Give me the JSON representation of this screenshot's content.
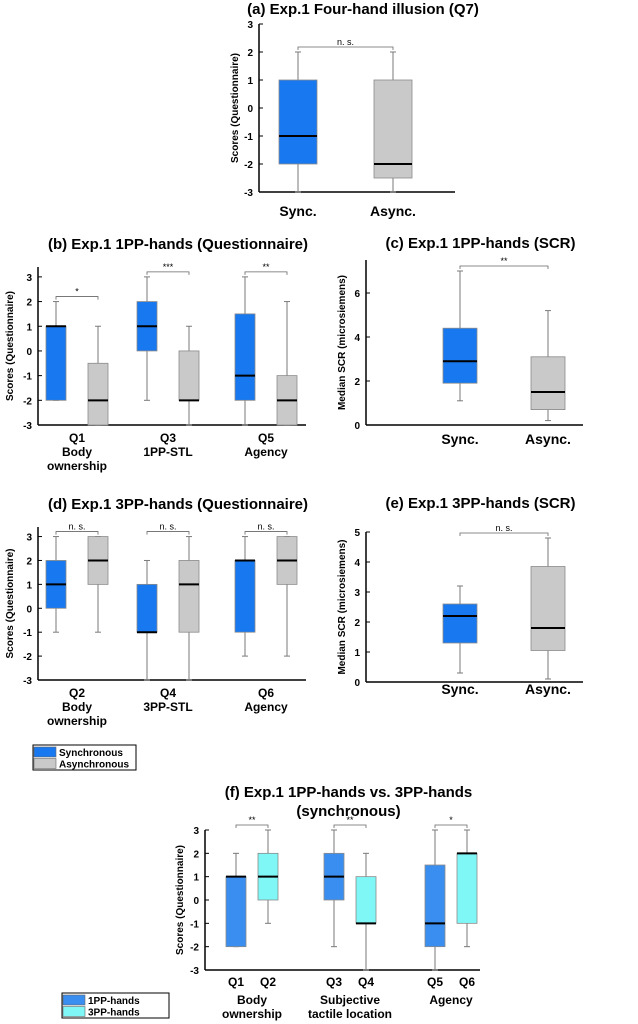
{
  "colors": {
    "sync": "#1878f0",
    "async": "#c9c9c9",
    "hands1pp": "#3a8ef0",
    "hands3pp": "#7ff7f7",
    "whisker": "#7a7a7a",
    "median": "#000000"
  },
  "chart_data": [
    {
      "type": "box",
      "panel": "(a)",
      "title": "Exp.1 Four-hand illusion (Q7)",
      "ylabel": "Scores (Questionnaire)",
      "ylim": [
        -3,
        3
      ],
      "yticks": [
        3,
        2,
        1,
        0,
        -1,
        -2,
        -3
      ],
      "categories": [
        "Sync.",
        "Async."
      ],
      "boxes": [
        {
          "group": 0,
          "series": "sync",
          "min": -3,
          "q1": -2,
          "median": -1,
          "q3": 1,
          "max": 2
        },
        {
          "group": 1,
          "series": "async",
          "min": -3,
          "q1": -2.5,
          "median": -2,
          "q3": 1,
          "max": 2
        }
      ],
      "significance": [
        {
          "from": 0,
          "to": 1,
          "label": "n. s."
        }
      ]
    },
    {
      "type": "box",
      "panel": "(b)",
      "title": "Exp.1 1PP-hands (Questionnaire)",
      "ylabel": "Scores (Questionnaire)",
      "ylim": [
        -3,
        3.4
      ],
      "yticks": [
        3,
        2,
        1,
        0,
        -1,
        -2,
        -3
      ],
      "categories": [
        [
          "Q1",
          "Body",
          "ownership"
        ],
        [
          "Q3",
          "1PP-STL"
        ],
        [
          "Q5",
          "Agency"
        ]
      ],
      "boxes": [
        {
          "group": 0,
          "series": "sync",
          "min": -2,
          "q1": -2,
          "median": 1,
          "q3": 1,
          "max": 2
        },
        {
          "group": 0,
          "series": "async",
          "min": -3,
          "q1": -3,
          "median": -2,
          "q3": -0.5,
          "max": 1
        },
        {
          "group": 1,
          "series": "sync",
          "min": -2,
          "q1": 0,
          "median": 1,
          "q3": 2,
          "max": 3
        },
        {
          "group": 1,
          "series": "async",
          "min": -3,
          "q1": -2,
          "median": -2,
          "q3": 0,
          "max": 1
        },
        {
          "group": 2,
          "series": "sync",
          "min": -3,
          "q1": -2,
          "median": -1,
          "q3": 1.5,
          "max": 3
        },
        {
          "group": 2,
          "series": "async",
          "min": -3,
          "q1": -3,
          "median": -2,
          "q3": -1,
          "max": 2
        }
      ],
      "significance": [
        {
          "group": 0,
          "label": "*"
        },
        {
          "group": 1,
          "label": "***"
        },
        {
          "group": 2,
          "label": "**"
        }
      ]
    },
    {
      "type": "box",
      "panel": "(c)",
      "title": "Exp.1 1PP-hands (SCR)",
      "ylabel": "Median SCR (microsiemens)",
      "ylim": [
        0,
        7.5
      ],
      "yticks": [
        6,
        4,
        2,
        0
      ],
      "categories": [
        "Sync.",
        "Async."
      ],
      "boxes": [
        {
          "group": 0,
          "series": "sync",
          "min": 1.1,
          "q1": 1.9,
          "median": 2.9,
          "q3": 4.4,
          "max": 7
        },
        {
          "group": 1,
          "series": "async",
          "min": 0.2,
          "q1": 0.7,
          "median": 1.5,
          "q3": 3.1,
          "max": 5.2
        }
      ],
      "significance": [
        {
          "from": 0,
          "to": 1,
          "label": "**"
        }
      ]
    },
    {
      "type": "box",
      "panel": "(d)",
      "title": "Exp.1 3PP-hands (Questionnaire)",
      "ylabel": "Scores (Questionnaire)",
      "ylim": [
        -3,
        3.4
      ],
      "yticks": [
        3,
        2,
        1,
        0,
        -1,
        -2,
        -3
      ],
      "categories": [
        [
          "Q2",
          "Body",
          "ownership"
        ],
        [
          "Q4",
          "3PP-STL"
        ],
        [
          "Q6",
          "Agency"
        ]
      ],
      "boxes": [
        {
          "group": 0,
          "series": "sync",
          "min": -1,
          "q1": 0,
          "median": 1,
          "q3": 2,
          "max": 3
        },
        {
          "group": 0,
          "series": "async",
          "min": -1,
          "q1": 1,
          "median": 2,
          "q3": 3,
          "max": 3
        },
        {
          "group": 1,
          "series": "sync",
          "min": -3,
          "q1": -1,
          "median": -1,
          "q3": 1,
          "max": 2
        },
        {
          "group": 1,
          "series": "async",
          "min": -3,
          "q1": -1,
          "median": 1,
          "q3": 2,
          "max": 3
        },
        {
          "group": 2,
          "series": "sync",
          "min": -2,
          "q1": -1,
          "median": 2,
          "q3": 2,
          "max": 3
        },
        {
          "group": 2,
          "series": "async",
          "min": -2,
          "q1": 1,
          "median": 2,
          "q3": 3,
          "max": 3
        }
      ],
      "significance": [
        {
          "group": 0,
          "label": "n. s."
        },
        {
          "group": 1,
          "label": "n. s."
        },
        {
          "group": 2,
          "label": "n. s."
        }
      ]
    },
    {
      "type": "box",
      "panel": "(e)",
      "title": "Exp.1 3PP-hands (SCR)",
      "ylabel": "Median SCR (microsiemens)",
      "ylim": [
        0,
        5
      ],
      "yticks": [
        5,
        4,
        3,
        2,
        1,
        0
      ],
      "categories": [
        "Sync.",
        "Async."
      ],
      "boxes": [
        {
          "group": 0,
          "series": "sync",
          "min": 0.3,
          "q1": 1.3,
          "median": 2.2,
          "q3": 2.6,
          "max": 3.2
        },
        {
          "group": 1,
          "series": "async",
          "min": 0.1,
          "q1": 1.05,
          "median": 1.8,
          "q3": 3.85,
          "max": 4.8
        }
      ],
      "significance": [
        {
          "from": 0,
          "to": 1,
          "label": "n. s."
        }
      ]
    },
    {
      "type": "box",
      "panel": "(f)",
      "title": [
        "Exp.1 1PP-hands vs. 3PP-hands",
        "(synchronous)"
      ],
      "ylabel": "Scores (Questionnaire)",
      "ylim": [
        -3,
        3
      ],
      "yticks": [
        3,
        2,
        1,
        0,
        -1,
        -2,
        -3
      ],
      "boxLabels": [
        "Q1",
        "Q2",
        "Q3",
        "Q4",
        "Q5",
        "Q6"
      ],
      "categories": [
        [
          "Body",
          "ownership"
        ],
        [
          "Subjective",
          "tactile location"
        ],
        [
          "Agency"
        ]
      ],
      "boxes": [
        {
          "group": 0,
          "series": "hands1pp",
          "min": -2,
          "q1": -2,
          "median": 1,
          "q3": 1,
          "max": 2
        },
        {
          "group": 0,
          "series": "hands3pp",
          "min": -1,
          "q1": 0,
          "median": 1,
          "q3": 2,
          "max": 3
        },
        {
          "group": 1,
          "series": "hands1pp",
          "min": -2,
          "q1": 0,
          "median": 1,
          "q3": 2,
          "max": 3
        },
        {
          "group": 1,
          "series": "hands3pp",
          "min": -3,
          "q1": -1,
          "median": -1,
          "q3": 1,
          "max": 2
        },
        {
          "group": 2,
          "series": "hands1pp",
          "min": -3,
          "q1": -2,
          "median": -1,
          "q3": 1.5,
          "max": 3
        },
        {
          "group": 2,
          "series": "hands3pp",
          "min": -2,
          "q1": -1,
          "median": 2,
          "q3": 2,
          "max": 3
        }
      ],
      "significance": [
        {
          "group": 0,
          "label": "**"
        },
        {
          "group": 1,
          "label": "**"
        },
        {
          "group": 2,
          "label": "*"
        }
      ]
    }
  ],
  "legends": [
    {
      "items": [
        {
          "series": "sync",
          "label": "Synchronous"
        },
        {
          "series": "async",
          "label": "Asynchronous"
        }
      ]
    },
    {
      "items": [
        {
          "series": "hands1pp",
          "label": "1PP-hands"
        },
        {
          "series": "hands3pp",
          "label": "3PP-hands"
        }
      ]
    }
  ]
}
